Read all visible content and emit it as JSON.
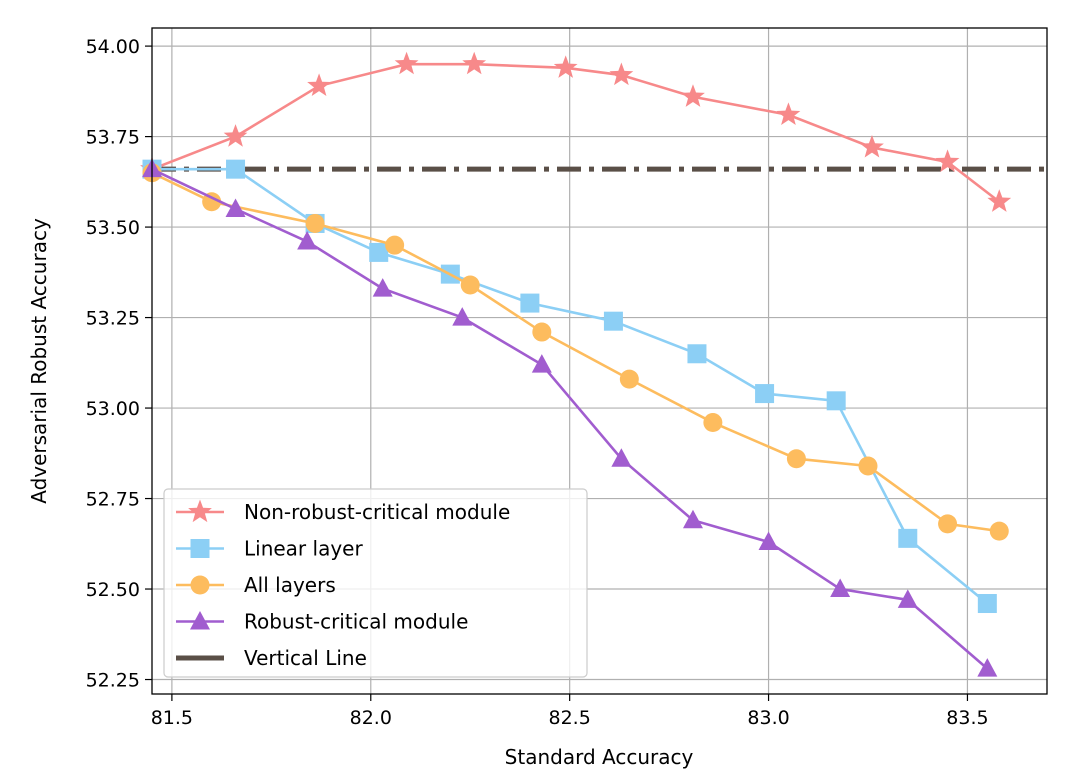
{
  "chart_data": {
    "type": "line",
    "xlabel": "Standard Accuracy",
    "ylabel": "Adversarial Robust Accuracy",
    "xlim": [
      81.45,
      83.7
    ],
    "ylim": [
      52.21,
      54.05
    ],
    "x_ticks": [
      81.5,
      82.0,
      82.5,
      83.0,
      83.5
    ],
    "x_tick_labels": [
      "81.5",
      "82.0",
      "82.5",
      "83.0",
      "83.5"
    ],
    "y_ticks": [
      52.25,
      52.5,
      52.75,
      53.0,
      53.25,
      53.5,
      53.75,
      54.0
    ],
    "y_tick_labels": [
      "52.25",
      "52.50",
      "52.75",
      "53.00",
      "53.25",
      "53.50",
      "53.75",
      "54.00"
    ],
    "grid": true,
    "legend_position": "lower-left",
    "series": [
      {
        "name": "Non-robust-critical module",
        "color": "#f7898a",
        "marker": "star",
        "x": [
          81.45,
          81.66,
          81.87,
          82.09,
          82.26,
          82.49,
          82.63,
          82.81,
          83.05,
          83.26,
          83.45,
          83.58
        ],
        "y": [
          53.66,
          53.75,
          53.89,
          53.95,
          53.95,
          53.94,
          53.92,
          53.86,
          53.81,
          53.72,
          53.68,
          53.57
        ]
      },
      {
        "name": "Linear layer",
        "color": "#8ccff5",
        "marker": "square",
        "x": [
          81.45,
          81.66,
          81.86,
          82.02,
          82.2,
          82.4,
          82.61,
          82.82,
          82.99,
          83.17,
          83.35,
          83.55
        ],
        "y": [
          53.66,
          53.66,
          53.51,
          53.43,
          53.37,
          53.29,
          53.24,
          53.15,
          53.04,
          53.02,
          52.64,
          52.46
        ]
      },
      {
        "name": "All layers",
        "color": "#fdbc5e",
        "marker": "circle",
        "x": [
          81.45,
          81.6,
          81.86,
          82.06,
          82.25,
          82.43,
          82.65,
          82.86,
          83.07,
          83.25,
          83.45,
          83.58
        ],
        "y": [
          53.65,
          53.57,
          53.51,
          53.45,
          53.34,
          53.21,
          53.08,
          52.96,
          52.86,
          52.84,
          52.68,
          52.66
        ]
      },
      {
        "name": "Robust-critical module",
        "color": "#a15dcf",
        "marker": "triangle",
        "x": [
          81.45,
          81.66,
          81.84,
          82.03,
          82.23,
          82.43,
          82.63,
          82.81,
          83.0,
          83.18,
          83.35,
          83.55
        ],
        "y": [
          53.66,
          53.55,
          53.46,
          53.33,
          53.25,
          53.12,
          52.86,
          52.69,
          52.63,
          52.5,
          52.47,
          52.28
        ]
      }
    ],
    "reference_line": {
      "name": "Vertical Line",
      "color": "#5a4f47",
      "y": 53.66
    }
  }
}
